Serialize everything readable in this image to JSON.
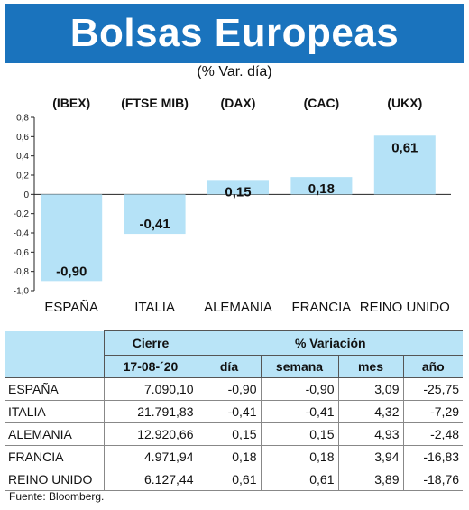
{
  "title": "Bolsas Europeas",
  "subtitle": "(% Var. día)",
  "colors": {
    "banner": "#1a73bd",
    "bar": "#b5e2f7",
    "table_header": "#b9e4f7"
  },
  "chart_data": {
    "type": "bar",
    "categories": [
      "ESPAÑA",
      "ITALIA",
      "ALEMANIA",
      "FRANCIA",
      "REINO UNIDO"
    ],
    "index_codes": [
      "(IBEX)",
      "(FTSE MIB)",
      "(DAX)",
      "(CAC)",
      "(UKX)"
    ],
    "values": [
      -0.9,
      -0.41,
      0.15,
      0.18,
      0.61
    ],
    "value_labels": [
      "-0,90",
      "-0,41",
      "0,15",
      "0,18",
      "0,61"
    ],
    "ylim": [
      -1.0,
      0.8
    ],
    "yticks": [
      0.8,
      0.6,
      0.4,
      0.2,
      0,
      -0.2,
      -0.4,
      -0.6,
      -0.8,
      -1.0
    ],
    "ytick_labels": [
      "0,8",
      "0,6",
      "0,4",
      "0,2",
      "0",
      "-0,2",
      "-0,4",
      "-0,6",
      "-0,8",
      "-1,0"
    ],
    "grid": false
  },
  "table": {
    "group_headers": {
      "cierre": "Cierre",
      "variacion": "% Variación"
    },
    "columns": [
      "17-08-´20",
      "día",
      "semana",
      "mes",
      "año"
    ],
    "rows": [
      {
        "country": "ESPAÑA",
        "cierre": "7.090,10",
        "dia": "-0,90",
        "semana": "-0,90",
        "mes": "3,09",
        "ano": "-25,75"
      },
      {
        "country": "ITALIA",
        "cierre": "21.791,83",
        "dia": "-0,41",
        "semana": "-0,41",
        "mes": "4,32",
        "ano": "-7,29"
      },
      {
        "country": "ALEMANIA",
        "cierre": "12.920,66",
        "dia": "0,15",
        "semana": "0,15",
        "mes": "4,93",
        "ano": "-2,48"
      },
      {
        "country": "FRANCIA",
        "cierre": "4.971,94",
        "dia": "0,18",
        "semana": "0,18",
        "mes": "3,94",
        "ano": "-16,83"
      },
      {
        "country": "REINO UNIDO",
        "cierre": "6.127,44",
        "dia": "0,61",
        "semana": "0,61",
        "mes": "3,89",
        "ano": "-18,76"
      }
    ]
  },
  "source": "Fuente: Bloomberg."
}
